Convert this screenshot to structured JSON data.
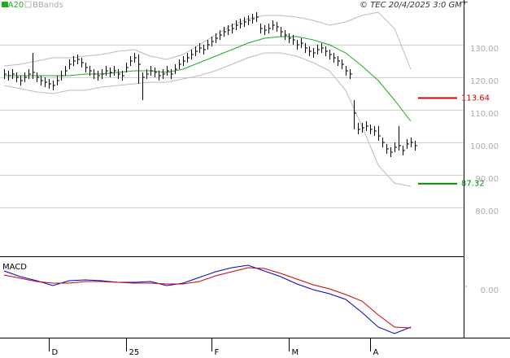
{
  "chart_data": [
    {
      "type": "ohlc",
      "source": "© TEC 20/4/2025 3:0 GMT",
      "categories": [
        null,
        null,
        null,
        null,
        null,
        null,
        null,
        null,
        null,
        null,
        null,
        "D",
        null,
        null,
        null,
        null,
        null,
        null,
        null,
        null,
        null,
        null,
        null,
        null,
        null,
        null,
        null,
        null,
        null,
        null,
        "25",
        null,
        null,
        null,
        null,
        null,
        null,
        null,
        null,
        null,
        null,
        null,
        null,
        null,
        null,
        null,
        null,
        null,
        null,
        null,
        null,
        "F",
        null,
        null,
        null,
        null,
        null,
        null,
        null,
        null,
        null,
        null,
        null,
        null,
        null,
        null,
        null,
        null,
        null,
        null,
        "M",
        null,
        null,
        null,
        null,
        null,
        null,
        null,
        null,
        null,
        null,
        null,
        null,
        null,
        null,
        null,
        null,
        null,
        null,
        null,
        "A",
        null,
        null,
        null,
        null,
        null,
        null,
        null,
        null,
        null,
        null,
        null
      ],
      "high": [
        122.5,
        122,
        122.5,
        121.5,
        120.5,
        121.5,
        122.5,
        127.5,
        121.5,
        120.5,
        120,
        119.5,
        119,
        120.5,
        122,
        123.5,
        125.5,
        126.5,
        127,
        126,
        124.5,
        123.5,
        122.5,
        122,
        122.5,
        123.5,
        123,
        123.5,
        122.5,
        122,
        124.5,
        126.5,
        127.5,
        127,
        121.5,
        122.5,
        123.5,
        123,
        122,
        122.5,
        123.5,
        122.5,
        124,
        125.5,
        126.5,
        127.5,
        128.5,
        129.5,
        130.5,
        130,
        131.5,
        132.5,
        133.5,
        134.5,
        135.5,
        136,
        136.5,
        137.5,
        138,
        138.5,
        139,
        139.5,
        140,
        136.5,
        136,
        136.5,
        137.5,
        137,
        135.5,
        134.5,
        133.5,
        133,
        131.5,
        132,
        130.5,
        129.5,
        129,
        130,
        130.5,
        129.5,
        128.5,
        127.5,
        126.5,
        125.5,
        123.5,
        122.5,
        113,
        106,
        106,
        106.5,
        105.5,
        105,
        105,
        101.5,
        99.5,
        98.5,
        100,
        105,
        99,
        101,
        101.5,
        100.5
      ],
      "low": [
        119.5,
        119,
        119.5,
        118.5,
        117.5,
        118.5,
        119.5,
        119.5,
        118.5,
        117.5,
        117,
        116.5,
        116,
        117.5,
        119,
        120.5,
        122.5,
        123.5,
        124,
        123,
        121.5,
        120.5,
        119.5,
        119,
        119.5,
        120.5,
        120,
        120.5,
        119.5,
        119,
        121.5,
        123.5,
        124.5,
        118,
        113,
        119.5,
        120.5,
        120,
        119,
        119.5,
        120.5,
        119.5,
        121,
        122.5,
        123.5,
        124.5,
        125.5,
        126.5,
        127.5,
        127,
        128.5,
        129.5,
        130.5,
        131.5,
        132.5,
        133,
        133.5,
        134.5,
        135,
        135.5,
        136,
        136.5,
        137,
        133.5,
        133,
        133.5,
        134.5,
        134,
        132.5,
        131.5,
        130.5,
        130,
        128.5,
        129,
        127.5,
        126.5,
        126,
        127,
        127.5,
        126.5,
        125.5,
        124.5,
        123.5,
        122.5,
        120.5,
        119.5,
        104,
        102.5,
        103,
        103.5,
        102.5,
        102,
        100.5,
        98.5,
        96.5,
        95.5,
        97,
        97.5,
        96,
        98,
        98.5,
        97.5
      ],
      "close": [
        121,
        120.5,
        121,
        120,
        119,
        120,
        121,
        121.5,
        120,
        119,
        118.5,
        118,
        117.5,
        119,
        120.5,
        122,
        124,
        125,
        125.5,
        124.5,
        123,
        122,
        121,
        120.5,
        121,
        122,
        121.5,
        122,
        121,
        120.5,
        123,
        125,
        126,
        124,
        120,
        121,
        122,
        121.5,
        120.5,
        121,
        122,
        121,
        122.5,
        124,
        125,
        126,
        127,
        128,
        129,
        128.5,
        130,
        131,
        132,
        133,
        134,
        134.5,
        135,
        136,
        136.5,
        137,
        137.5,
        138,
        138.5,
        135,
        134.5,
        135,
        136,
        135.5,
        134,
        133,
        132,
        131.5,
        130,
        130.5,
        129,
        128,
        127.5,
        128.5,
        129,
        128,
        127,
        126,
        125,
        124,
        122,
        121,
        109,
        104,
        104.5,
        105,
        104,
        103.5,
        102,
        100,
        98,
        97,
        98.5,
        99,
        97.5,
        99.5,
        100,
        99
      ],
      "bar_color": "#000000",
      "series": [
        {
          "name": "MA20",
          "color": "#22aa22",
          "x": [
            0,
            4,
            8,
            12,
            16,
            20,
            24,
            28,
            32,
            36,
            40,
            44,
            48,
            52,
            56,
            60,
            64,
            68,
            72,
            76,
            80,
            84,
            88,
            92,
            96,
            100
          ],
          "values": [
            120.5,
            120.5,
            120.5,
            120.5,
            120.5,
            121,
            121,
            121.5,
            122,
            122,
            121.5,
            122.5,
            124.5,
            126.5,
            128.5,
            130.5,
            132,
            132.5,
            132.5,
            131.5,
            130,
            127.5,
            123.5,
            119,
            113,
            106.5
          ]
        },
        {
          "name": "BBands",
          "color": "#bbbbbb",
          "x": [
            0,
            4,
            8,
            12,
            16,
            20,
            24,
            28,
            32,
            36,
            40,
            44,
            48,
            52,
            56,
            60,
            64,
            68,
            72,
            76,
            80,
            84,
            88,
            92,
            96,
            100
          ],
          "upper": [
            123.5,
            124,
            125,
            126,
            126,
            126.5,
            127,
            128,
            128.5,
            126.5,
            125.5,
            127,
            130,
            133,
            136,
            138,
            139,
            139,
            138.5,
            137.5,
            136,
            137,
            139,
            140,
            135,
            122.5
          ],
          "lower": [
            117.5,
            116.5,
            115.5,
            115,
            116,
            116,
            117,
            117.5,
            118,
            118.5,
            118.5,
            119.5,
            120.5,
            122,
            124,
            126,
            127.5,
            127.5,
            126.5,
            124.5,
            122,
            116,
            105,
            93,
            87.5,
            86.5
          ]
        }
      ],
      "levels": [
        {
          "value": 113.64,
          "label": "113.64",
          "color": "#cc0000"
        },
        {
          "value": 87.32,
          "label": "87.32",
          "color": "#008800"
        }
      ],
      "xlim": [
        -1,
        113
      ],
      "ylim": [
        65,
        143.75
      ],
      "yticks": [
        {
          "value": 130,
          "label": "130.00"
        },
        {
          "value": 120,
          "label": "120.00"
        },
        {
          "value": 110,
          "label": "110.00"
        },
        {
          "value": 100,
          "label": "100.00"
        },
        {
          "value": 90,
          "label": "90.00"
        },
        {
          "value": 80,
          "label": "80.00"
        }
      ],
      "grid": true
    },
    {
      "type": "line",
      "title": "MACD",
      "xlim": [
        -1,
        113
      ],
      "ylim": [
        -6.3,
        3.7
      ],
      "yticks": [
        {
          "value": 0,
          "label": "0.00"
        }
      ],
      "series": [
        {
          "color": "#0000cc",
          "x": [
            0,
            4,
            8,
            12,
            16,
            20,
            24,
            28,
            32,
            36,
            40,
            44,
            48,
            52,
            56,
            60,
            64,
            68,
            72,
            76,
            80,
            84,
            88,
            92,
            96,
            100
          ],
          "values": [
            1.9,
            1.2,
            0.7,
            0.1,
            0.7,
            0.8,
            0.7,
            0.5,
            0.5,
            0.6,
            0.1,
            0.4,
            1.1,
            1.8,
            2.3,
            2.6,
            1.9,
            1.2,
            0.3,
            -0.4,
            -0.9,
            -1.6,
            -3.2,
            -5.0,
            -5.8,
            -5.0
          ]
        },
        {
          "color": "#cc0000",
          "x": [
            0,
            4,
            8,
            12,
            16,
            20,
            24,
            28,
            32,
            36,
            40,
            44,
            48,
            52,
            56,
            60,
            64,
            68,
            72,
            76,
            80,
            84,
            88,
            92,
            96,
            100
          ],
          "values": [
            1.4,
            1.0,
            0.6,
            0.4,
            0.4,
            0.6,
            0.6,
            0.5,
            0.4,
            0.4,
            0.3,
            0.3,
            0.6,
            1.3,
            1.8,
            2.3,
            2.2,
            1.6,
            0.9,
            0.2,
            -0.3,
            -1.0,
            -1.8,
            -3.5,
            -5.0,
            -5.1
          ]
        }
      ]
    }
  ]
}
